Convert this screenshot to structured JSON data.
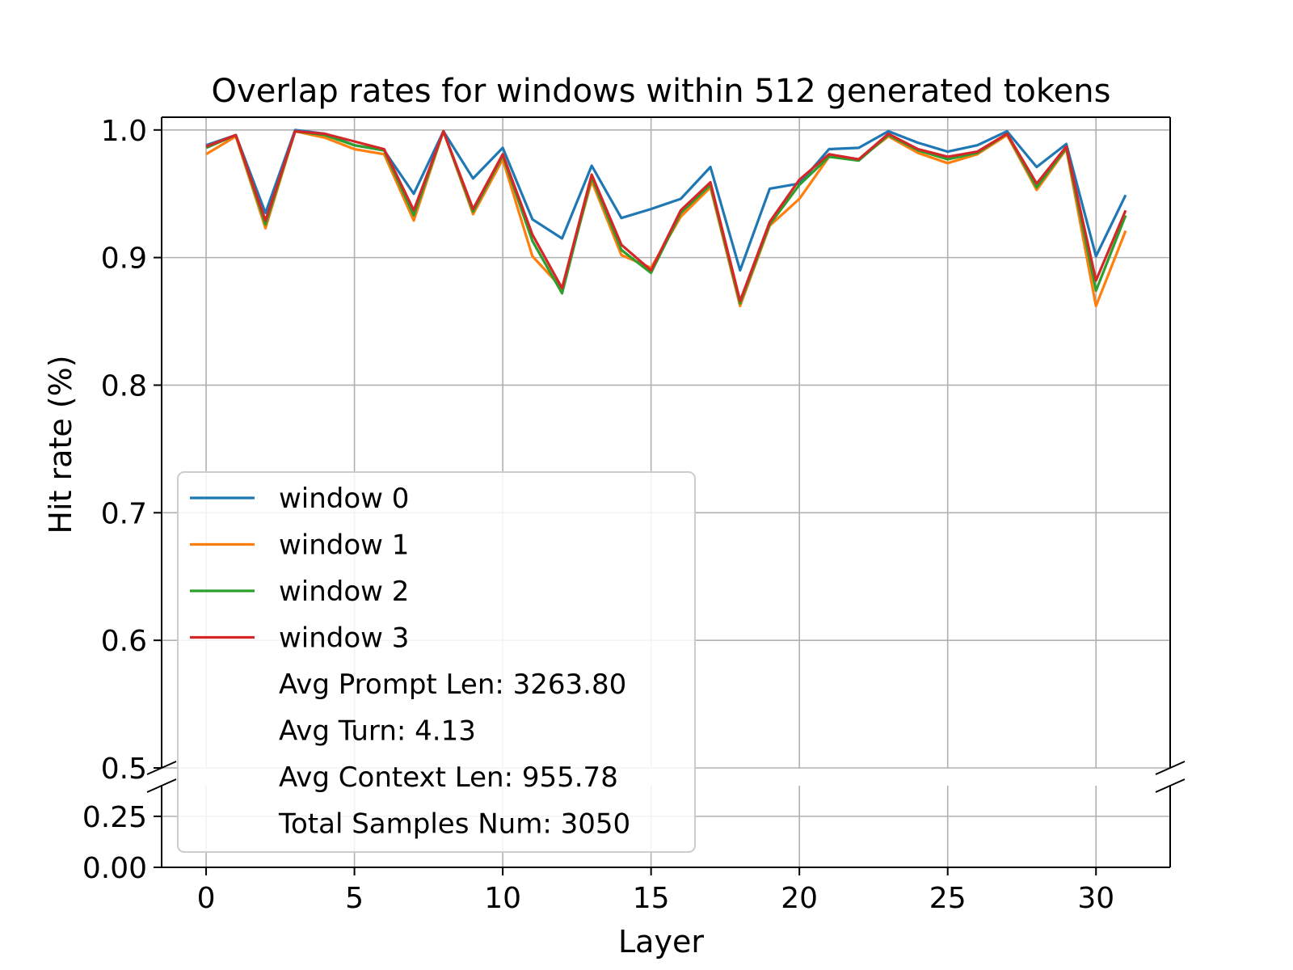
{
  "chart_data": {
    "type": "line",
    "title": "Overlap rates for windows within 512 generated tokens",
    "xlabel": "Layer",
    "ylabel": "Hit rate (%)",
    "xlim": [
      -1.5,
      32.5
    ],
    "x_ticks": [
      0,
      5,
      10,
      15,
      20,
      25,
      30
    ],
    "y_ticks_upper": [
      "0.5",
      "0.6",
      "0.7",
      "0.8",
      "0.9",
      "1.0"
    ],
    "y_ticks_lower": [
      "0.00",
      "0.25"
    ],
    "ylim_upper": [
      0.5,
      1.01
    ],
    "ylim_lower": [
      0.0,
      0.4
    ],
    "broken_y_axis": true,
    "grid": true,
    "legend_position": "lower-left",
    "x": [
      0,
      1,
      2,
      3,
      4,
      5,
      6,
      7,
      8,
      9,
      10,
      11,
      12,
      13,
      14,
      15,
      16,
      17,
      18,
      19,
      20,
      21,
      22,
      23,
      24,
      25,
      26,
      27,
      28,
      29,
      30,
      31
    ],
    "series": [
      {
        "name": "window 0",
        "color": "#1f77b4",
        "values": [
          0.988,
          0.996,
          0.935,
          1.0,
          0.997,
          0.988,
          0.984,
          0.95,
          0.999,
          0.962,
          0.986,
          0.93,
          0.915,
          0.972,
          0.931,
          0.938,
          0.946,
          0.971,
          0.89,
          0.954,
          0.958,
          0.985,
          0.986,
          0.999,
          0.99,
          0.983,
          0.988,
          0.999,
          0.971,
          0.989,
          0.901,
          0.949
        ]
      },
      {
        "name": "window 1",
        "color": "#ff7f0e",
        "values": [
          0.981,
          0.995,
          0.923,
          0.999,
          0.994,
          0.985,
          0.981,
          0.929,
          0.999,
          0.934,
          0.977,
          0.901,
          0.876,
          0.96,
          0.902,
          0.892,
          0.932,
          0.955,
          0.862,
          0.925,
          0.946,
          0.979,
          0.977,
          0.995,
          0.982,
          0.974,
          0.981,
          0.996,
          0.953,
          0.985,
          0.862,
          0.921
        ]
      },
      {
        "name": "window 2",
        "color": "#2ca02c",
        "values": [
          0.986,
          0.996,
          0.926,
          0.999,
          0.996,
          0.988,
          0.984,
          0.933,
          0.999,
          0.936,
          0.98,
          0.913,
          0.872,
          0.963,
          0.906,
          0.888,
          0.935,
          0.957,
          0.864,
          0.926,
          0.957,
          0.979,
          0.976,
          0.996,
          0.984,
          0.977,
          0.982,
          0.997,
          0.955,
          0.986,
          0.874,
          0.933
        ]
      },
      {
        "name": "window 3",
        "color": "#d62728",
        "values": [
          0.987,
          0.996,
          0.929,
          0.999,
          0.997,
          0.991,
          0.985,
          0.937,
          0.999,
          0.938,
          0.981,
          0.918,
          0.876,
          0.965,
          0.91,
          0.89,
          0.937,
          0.959,
          0.866,
          0.928,
          0.961,
          0.981,
          0.977,
          0.997,
          0.985,
          0.979,
          0.983,
          0.997,
          0.958,
          0.987,
          0.882,
          0.937
        ]
      }
    ],
    "legend_notes": [
      "Avg Prompt Len: 3263.80",
      "Avg Turn: 4.13",
      "Avg Context Len: 955.78",
      "Total Samples Num: 3050"
    ]
  }
}
